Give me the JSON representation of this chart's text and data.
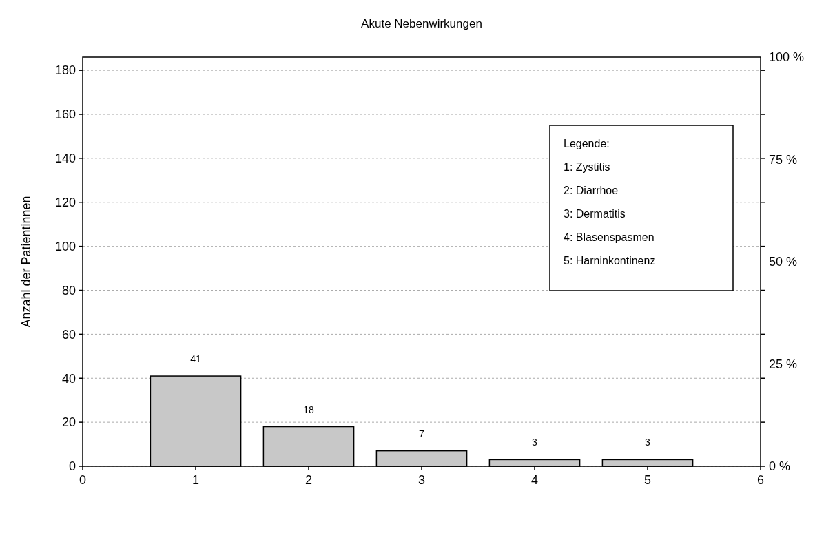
{
  "chart_data": {
    "type": "bar",
    "title": "Akute Nebenwirkungen",
    "ylabel": "Anzahl der Patientinnen",
    "x": [
      1,
      2,
      3,
      4,
      5
    ],
    "values": [
      41,
      18,
      7,
      3,
      3
    ],
    "color": "#c8c8c8",
    "data_labels": true,
    "xlim": [
      0,
      6
    ],
    "xticks": [
      0,
      1,
      2,
      3,
      4,
      5,
      6
    ],
    "ylim": [
      0,
      186
    ],
    "yticks": [
      0,
      20,
      40,
      60,
      80,
      100,
      120,
      140,
      160,
      180
    ],
    "y2lim": [
      0,
      100
    ],
    "y2ticks": [
      {
        "value": 0,
        "label": "0 %"
      },
      {
        "value": 25,
        "label": "25 %"
      },
      {
        "value": 50,
        "label": "50 %"
      },
      {
        "value": 75,
        "label": "75 %"
      },
      {
        "value": 100,
        "label": "100 %"
      }
    ],
    "grid": "y",
    "annotations": [
      "Legende:",
      "1: Zystitis",
      "2: Diarrhoe",
      "3: Dermatitis",
      "4: Blasenspasmen",
      "5: Harninkontinenz"
    ]
  }
}
